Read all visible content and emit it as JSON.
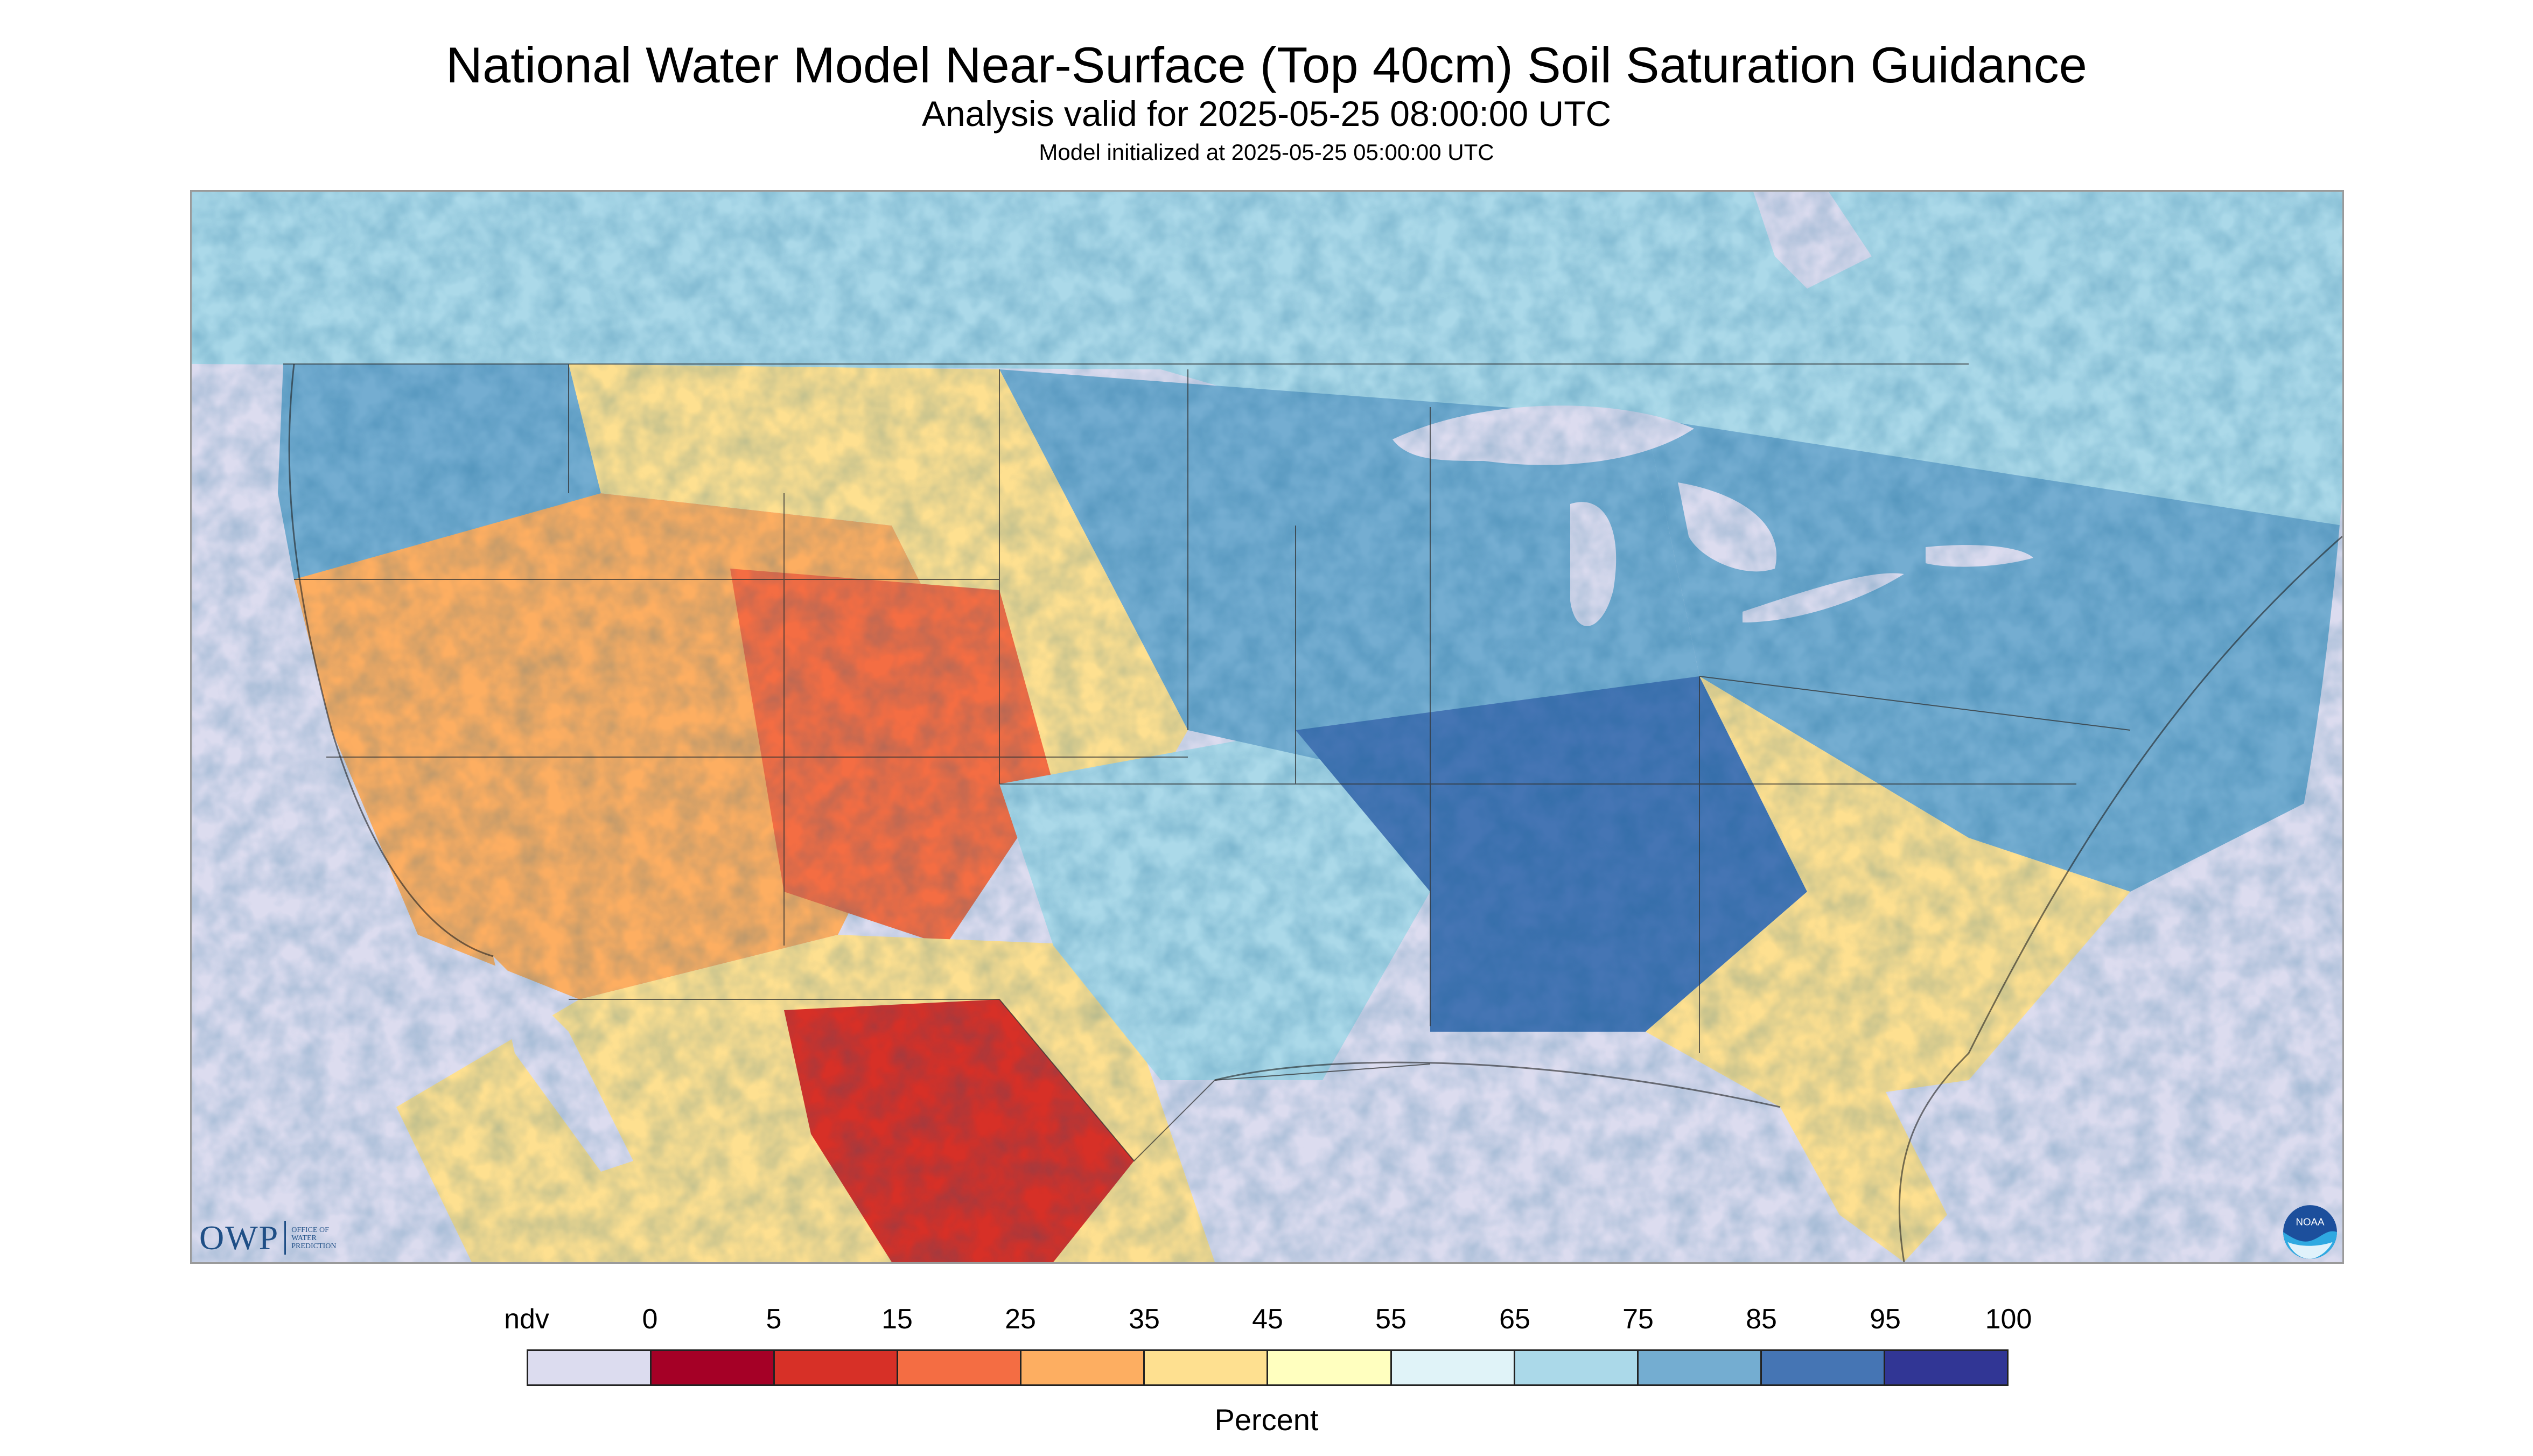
{
  "header": {
    "title": "National Water Model Near-Surface (Top 40cm) Soil Saturation Guidance",
    "subtitle": "Analysis valid for 2025-05-25 08:00:00 UTC",
    "init": "Model initialized at 2025-05-25 05:00:00 UTC"
  },
  "logos": {
    "owp_mark": "OWP",
    "owp_sub": [
      "OFFICE OF",
      "WATER",
      "PREDICTION"
    ],
    "noaa": "NOAA"
  },
  "legend": {
    "labels": [
      "ndv",
      "0",
      "5",
      "15",
      "25",
      "35",
      "45",
      "55",
      "65",
      "75",
      "85",
      "95",
      "100"
    ],
    "colors": [
      "#dcdcef",
      "#a50026",
      "#d73027",
      "#f46d43",
      "#fdae61",
      "#fee090",
      "#ffffbf",
      "#e0f3f8",
      "#abd9e9",
      "#74add1",
      "#4575b4",
      "#313695"
    ],
    "units": "Percent"
  },
  "map": {
    "background": "#dcdcef",
    "regions": [
      {
        "id": "canada",
        "color": "#abd9e9"
      },
      {
        "id": "pacific-nw",
        "color": "#74add1"
      },
      {
        "id": "great-basin",
        "color": "#fdae61"
      },
      {
        "id": "southwest",
        "color": "#f46d43"
      },
      {
        "id": "mexico",
        "color": "#fee090"
      },
      {
        "id": "chihuahua",
        "color": "#d73027"
      },
      {
        "id": "plains",
        "color": "#fee090"
      },
      {
        "id": "texas",
        "color": "#abd9e9"
      },
      {
        "id": "midwest",
        "color": "#74add1"
      },
      {
        "id": "south",
        "color": "#4575b4"
      },
      {
        "id": "northeast",
        "color": "#74add1"
      },
      {
        "id": "southeast",
        "color": "#fee090"
      },
      {
        "id": "florida",
        "color": "#fee090"
      },
      {
        "id": "great-lakes",
        "color": "#dcdcef"
      }
    ]
  }
}
